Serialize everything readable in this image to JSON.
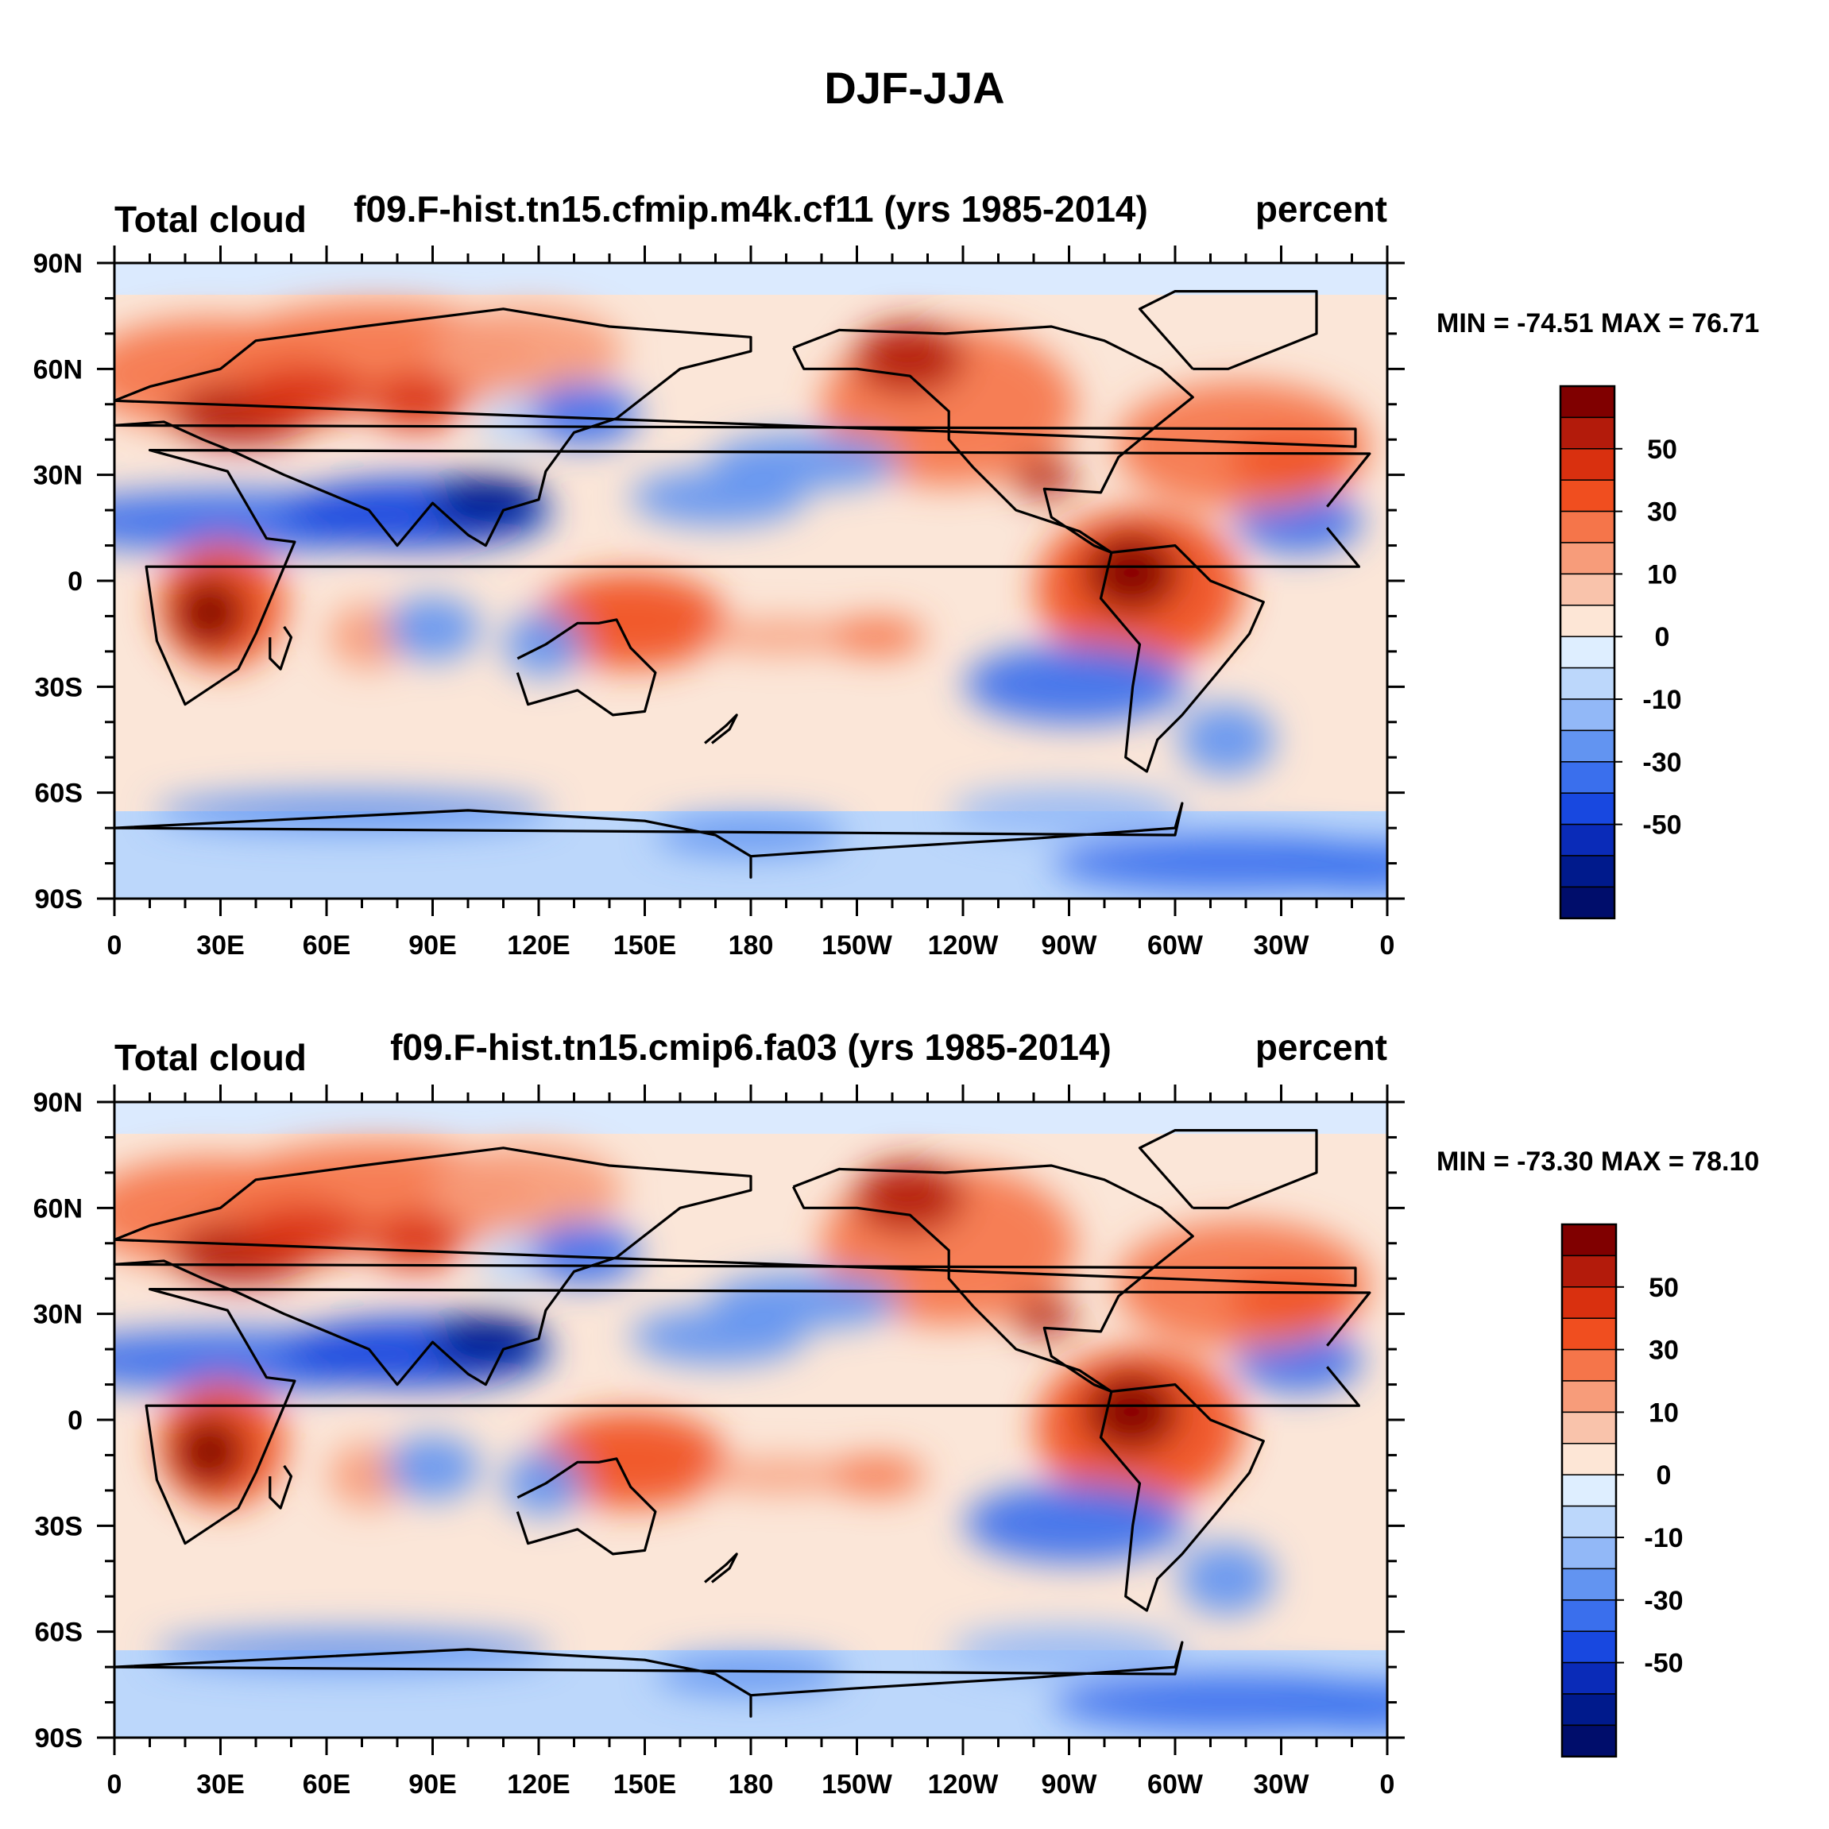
{
  "figure": {
    "title": "DJF-JJA"
  },
  "axes": {
    "lon_ticks": [
      "0",
      "30E",
      "60E",
      "90E",
      "120E",
      "150E",
      "180",
      "150W",
      "120W",
      "90W",
      "60W",
      "30W",
      "0"
    ],
    "lat_ticks": [
      "90N",
      "60N",
      "30N",
      "0",
      "30S",
      "60S",
      "90S"
    ]
  },
  "colorbar": {
    "labels": [
      "50",
      "30",
      "10",
      "0",
      "-10",
      "-30",
      "-50"
    ],
    "colors": [
      "#800000",
      "#b31b0b",
      "#d9300f",
      "#f04e1f",
      "#f5754a",
      "#f79c7a",
      "#f9c3ab",
      "#fde6d6",
      "#deeeff",
      "#bcd7fb",
      "#92b8f7",
      "#6294f1",
      "#3a6fed",
      "#1848e0",
      "#0a2bb8",
      "#001a8c",
      "#000d6b"
    ]
  },
  "panels": [
    {
      "left_title": "Total cloud",
      "center_title": "f09.F-hist.tn15.cfmip.m4k.cf11 (yrs 1985-2014)",
      "right_title": "percent",
      "stats": "MIN = -74.51 MAX =  76.71"
    },
    {
      "left_title": "Total cloud",
      "center_title": "f09.F-hist.tn15.cmip6.fa03 (yrs 1985-2014)",
      "right_title": "percent",
      "stats": "MIN = -73.30 MAX =  78.10"
    }
  ]
}
